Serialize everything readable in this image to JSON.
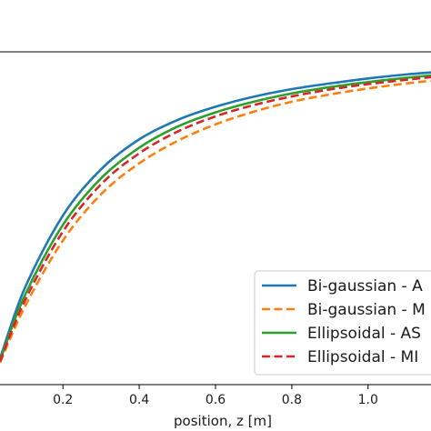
{
  "chart_data": {
    "type": "line",
    "title": "",
    "xlabel": "position, z [m]",
    "ylabel": "",
    "xlim": [
      0.035,
      1.165
    ],
    "ylim": [
      0.0,
      1.0
    ],
    "x_ticks": [
      0.2,
      0.4,
      0.6,
      0.8,
      1.0
    ],
    "x_tick_labels": [
      "0.2",
      "0.4",
      "0.6",
      "0.8",
      "1.0"
    ],
    "grid": false,
    "legend": {
      "placement": "lower-right",
      "entries": [
        "Bi-gaussian - A",
        "Bi-gaussian - M",
        "Ellipsoidal - AS",
        "Ellipsoidal - MI"
      ]
    },
    "series": [
      {
        "name": "Bi-gaussian - A",
        "color": "#1f77b4",
        "dash": "solid",
        "x": [
          0.035,
          0.1,
          0.2,
          0.3,
          0.4,
          0.5,
          0.6,
          0.7,
          0.8,
          0.9,
          1.0,
          1.1,
          1.165
        ],
        "y": [
          0.078,
          0.29,
          0.508,
          0.647,
          0.737,
          0.795,
          0.835,
          0.865,
          0.888,
          0.905,
          0.92,
          0.932,
          0.938
        ]
      },
      {
        "name": "Bi-gaussian - M",
        "color": "#ff7f0e",
        "dash": "dashed",
        "x": [
          0.035,
          0.1,
          0.2,
          0.3,
          0.4,
          0.5,
          0.6,
          0.7,
          0.8,
          0.9,
          1.0,
          1.1,
          1.165
        ],
        "y": [
          0.066,
          0.234,
          0.433,
          0.572,
          0.665,
          0.732,
          0.782,
          0.82,
          0.85,
          0.872,
          0.89,
          0.905,
          0.913
        ]
      },
      {
        "name": "Ellipsoidal - AS",
        "color": "#2ca02c",
        "dash": "solid",
        "x": [
          0.035,
          0.1,
          0.2,
          0.3,
          0.4,
          0.5,
          0.6,
          0.7,
          0.8,
          0.9,
          1.0,
          1.1,
          1.165
        ],
        "y": [
          0.073,
          0.268,
          0.48,
          0.62,
          0.712,
          0.775,
          0.818,
          0.85,
          0.875,
          0.894,
          0.909,
          0.922,
          0.929
        ]
      },
      {
        "name": "Ellipsoidal - MI",
        "color": "#d62728",
        "dash": "dashed",
        "x": [
          0.035,
          0.1,
          0.2,
          0.3,
          0.4,
          0.5,
          0.6,
          0.7,
          0.8,
          0.9,
          1.0,
          1.1,
          1.165
        ],
        "y": [
          0.07,
          0.252,
          0.46,
          0.602,
          0.695,
          0.76,
          0.806,
          0.84,
          0.866,
          0.887,
          0.903,
          0.916,
          0.924
        ]
      }
    ]
  }
}
